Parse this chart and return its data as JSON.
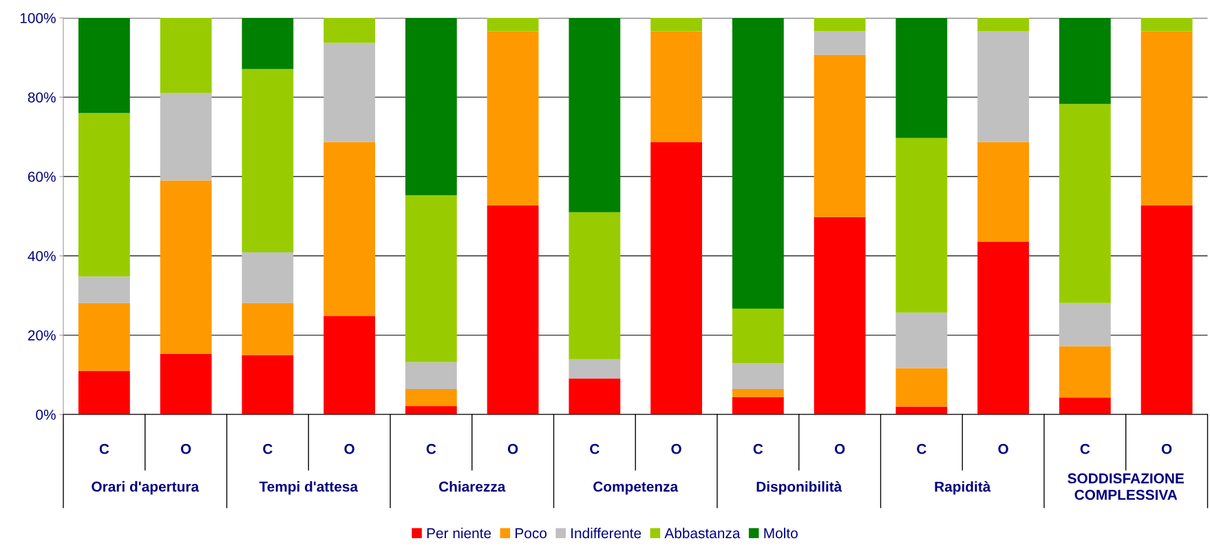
{
  "chart_data": {
    "type": "bar",
    "stacked": true,
    "categories": [
      "C",
      "O",
      "C",
      "O",
      "C",
      "O",
      "C",
      "O",
      "C",
      "O",
      "C",
      "O",
      "C",
      "O"
    ],
    "annotations": [
      "Orari d'apertura",
      "Tempi d'attesa",
      "Chiarezza",
      "Competenza",
      "Disponibilità",
      "Rapidità",
      "SODDISFAZIONE COMPLESSIVA"
    ],
    "series": [
      {
        "name": "Per niente",
        "color": "#ff0000",
        "values": [
          11.0,
          15.3,
          15.0,
          24.8,
          2.1,
          52.7,
          9.1,
          68.7,
          4.4,
          49.8,
          2.0,
          43.6,
          4.3,
          52.7
        ]
      },
      {
        "name": "Poco",
        "color": "#ff9900",
        "values": [
          17.1,
          43.7,
          13.1,
          43.9,
          4.3,
          43.9,
          0,
          27.9,
          2.0,
          40.9,
          9.7,
          25.1,
          12.9,
          43.9
        ]
      },
      {
        "name": "Indifferente",
        "color": "#c0c0c0",
        "values": [
          6.7,
          22.1,
          12.8,
          25.0,
          6.8,
          0,
          4.8,
          0,
          6.6,
          5.9,
          14.0,
          27.9,
          10.9,
          0
        ]
      },
      {
        "name": "Abbastanza",
        "color": "#99cc00",
        "values": [
          41.2,
          18.9,
          46.2,
          6.3,
          42.1,
          3.4,
          37.1,
          3.4,
          13.7,
          3.4,
          44.0,
          3.4,
          50.2,
          3.4
        ]
      },
      {
        "name": "Molto",
        "color": "#008000",
        "values": [
          24.0,
          0,
          12.9,
          0,
          44.7,
          0,
          49.0,
          0,
          73.3,
          0,
          30.3,
          0,
          21.7,
          0
        ]
      }
    ],
    "ylim": [
      0,
      100
    ],
    "yticks": [
      {
        "value": 0,
        "label": "0%"
      },
      {
        "value": 20,
        "label": "20%"
      },
      {
        "value": 40,
        "label": "40%"
      },
      {
        "value": 60,
        "label": "60%"
      },
      {
        "value": 80,
        "label": "80%"
      },
      {
        "value": 100,
        "label": "100%"
      }
    ],
    "grid": "y",
    "legend": "bottom"
  }
}
